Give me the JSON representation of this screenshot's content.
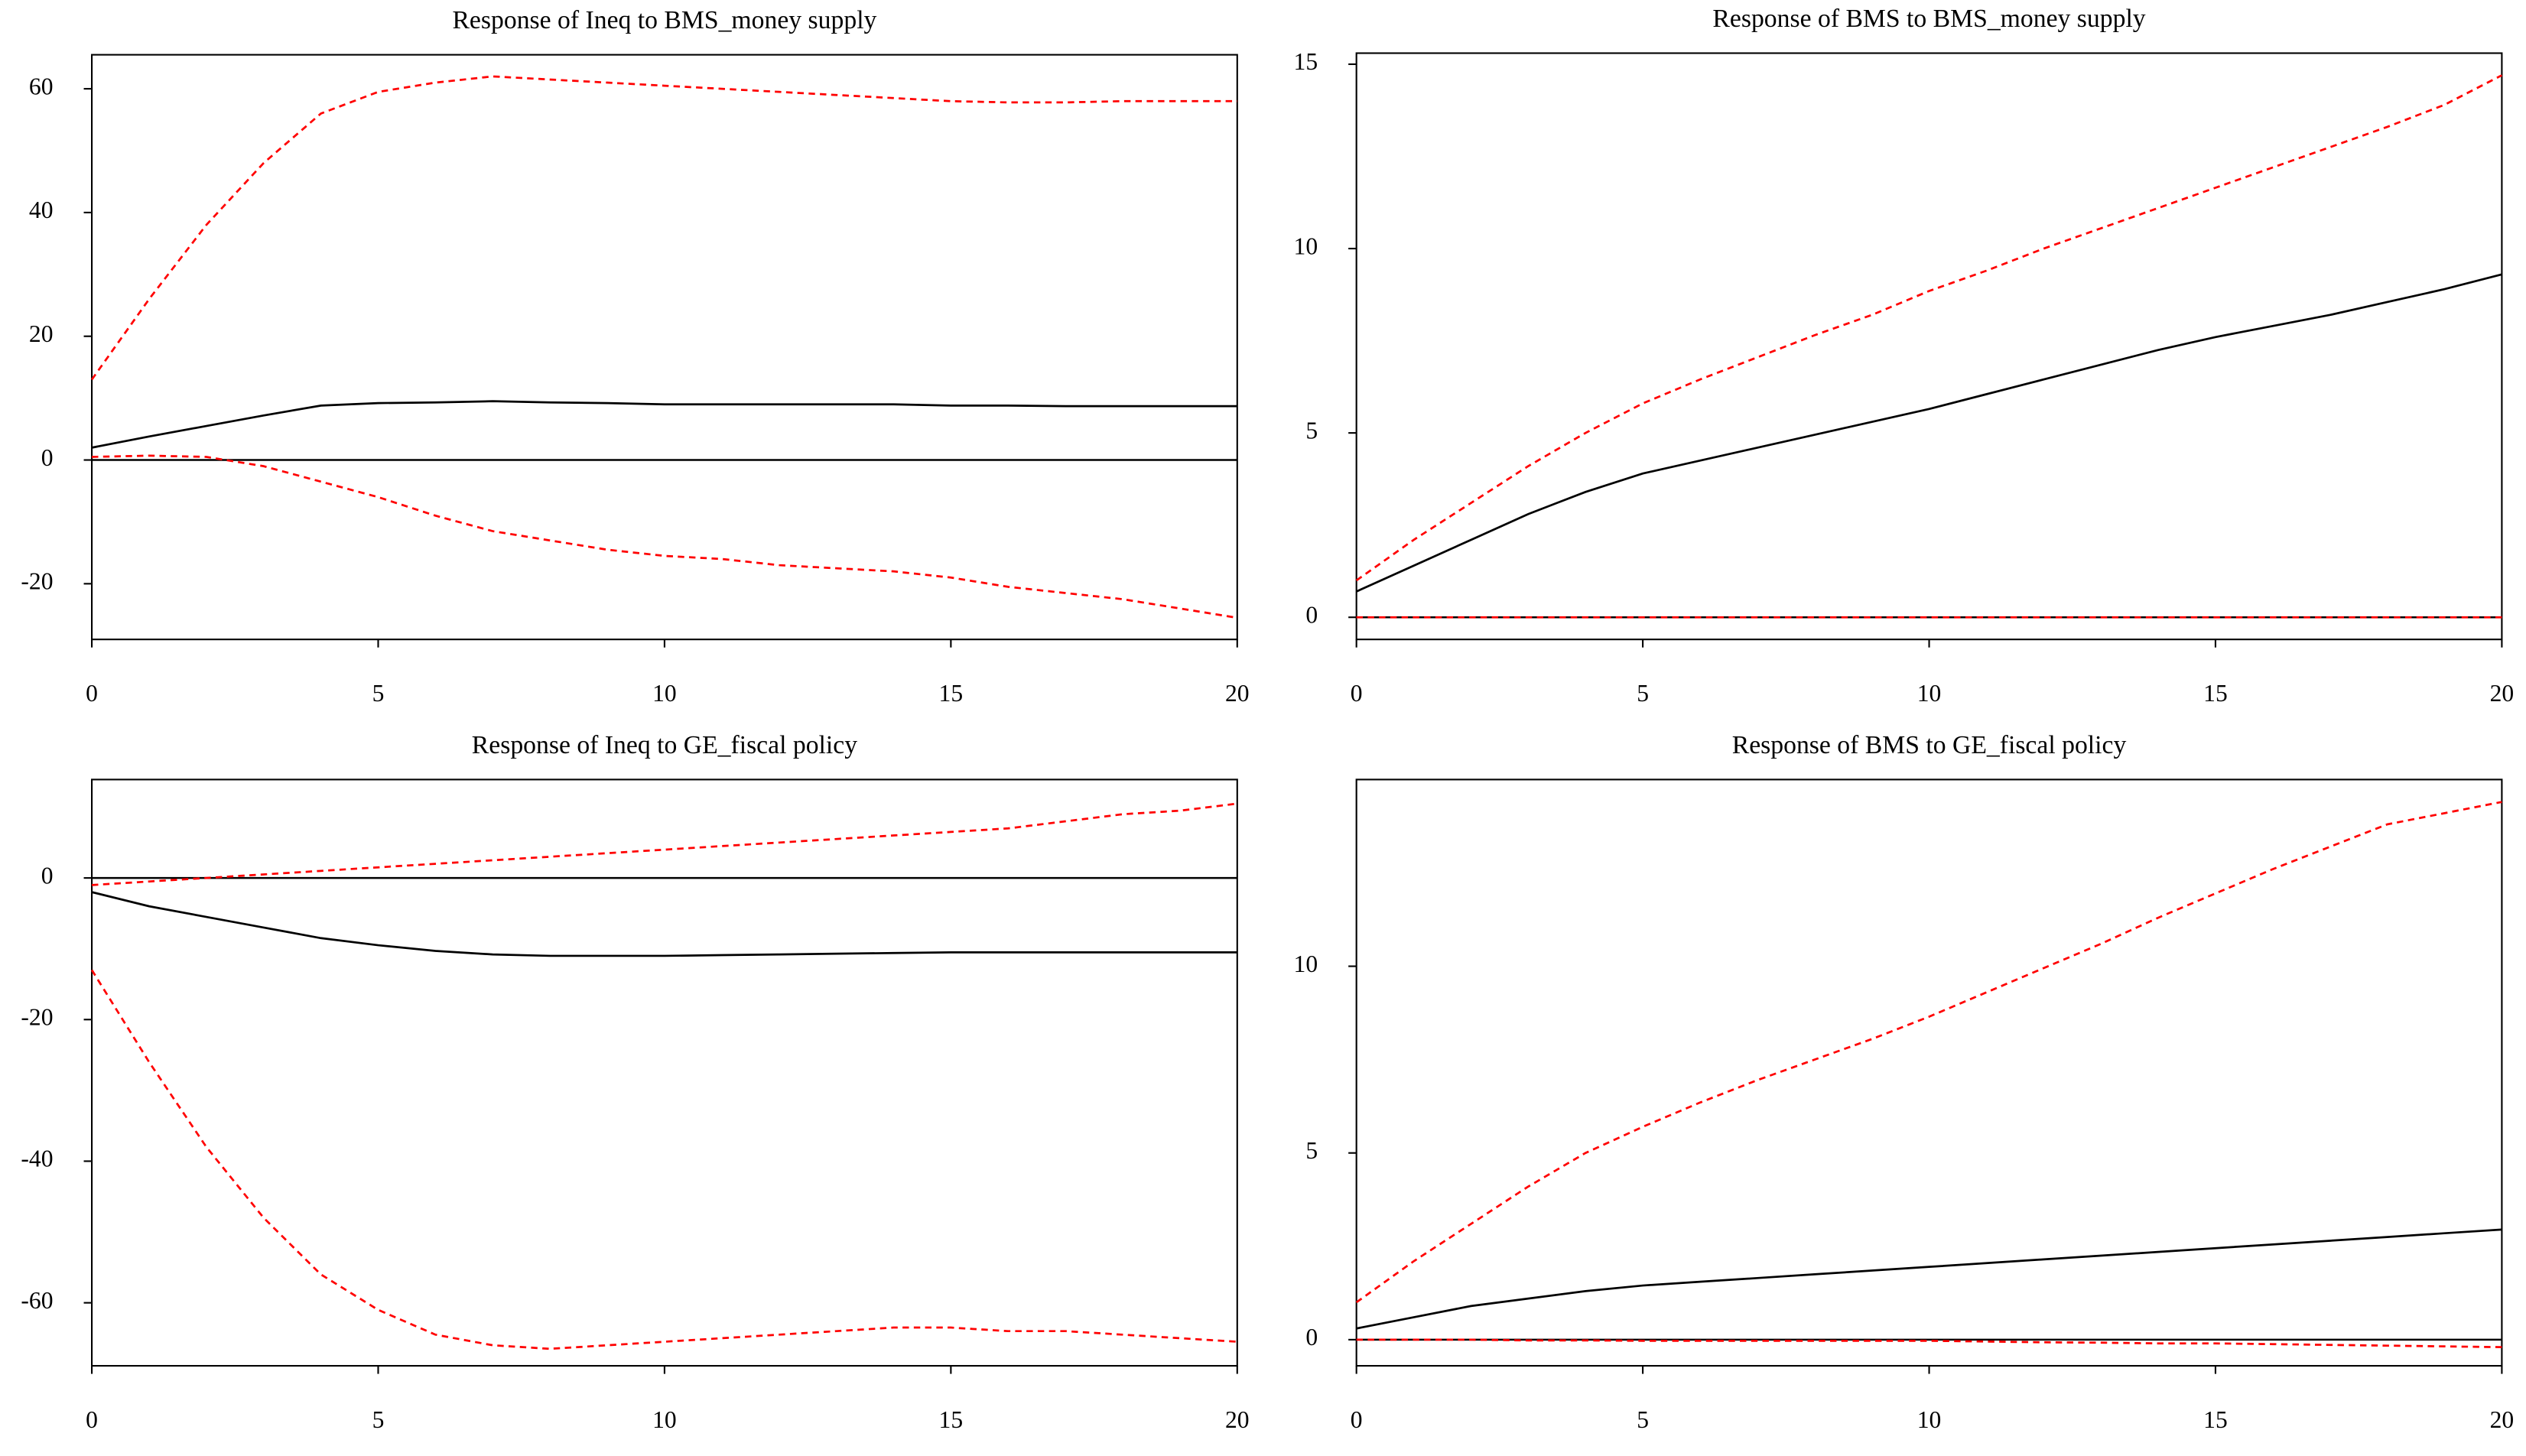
{
  "chart_data": [
    {
      "type": "line",
      "title": "Response of Ineq to BMS_money supply",
      "x": [
        0,
        1,
        2,
        3,
        4,
        5,
        6,
        7,
        8,
        9,
        10,
        11,
        12,
        13,
        14,
        15,
        16,
        17,
        18,
        19,
        20
      ],
      "xlim": [
        0,
        20
      ],
      "xticks": [
        0,
        5,
        10,
        15,
        20
      ],
      "ylim": [
        -29,
        65.5
      ],
      "yticks": [
        -20,
        0,
        20,
        40,
        60
      ],
      "reference_line": 0,
      "series": [
        {
          "color": "#000000",
          "dashed": false,
          "values": [
            2,
            3.8,
            5.5,
            7.2,
            8.8,
            9.2,
            9.3,
            9.5,
            9.3,
            9.2,
            9,
            9,
            9,
            9,
            9,
            8.8,
            8.8,
            8.7,
            8.7,
            8.7,
            8.7
          ]
        },
        {
          "color": "#ff0000",
          "dashed": true,
          "values": [
            13,
            26,
            38,
            48,
            56,
            59.5,
            61,
            62,
            61.5,
            61,
            60.5,
            60,
            59.5,
            59,
            58.5,
            58,
            57.8,
            57.8,
            58,
            58,
            58
          ]
        },
        {
          "color": "#ff0000",
          "dashed": true,
          "values": [
            0.5,
            0.7,
            0.5,
            -1,
            -3.5,
            -6,
            -9,
            -11.5,
            -13,
            -14.5,
            -15.5,
            -16,
            -17,
            -17.5,
            -18,
            -19,
            -20.5,
            -21.5,
            -22.5,
            -24,
            -25.5
          ]
        }
      ]
    },
    {
      "type": "line",
      "title": "Response of BMS to BMS_money supply",
      "x": [
        0,
        1,
        2,
        3,
        4,
        5,
        6,
        7,
        8,
        9,
        10,
        11,
        12,
        13,
        14,
        15,
        16,
        17,
        18,
        19,
        20
      ],
      "xlim": [
        0,
        20
      ],
      "xticks": [
        0,
        5,
        10,
        15,
        20
      ],
      "ylim": [
        -0.6,
        15.3
      ],
      "yticks": [
        0,
        5,
        10,
        15
      ],
      "reference_line": 0,
      "series": [
        {
          "color": "#000000",
          "dashed": false,
          "values": [
            0.7,
            1.4,
            2.1,
            2.8,
            3.4,
            3.9,
            4.25,
            4.6,
            4.95,
            5.3,
            5.65,
            6.05,
            6.45,
            6.85,
            7.25,
            7.6,
            7.9,
            8.2,
            8.55,
            8.9,
            9.3
          ]
        },
        {
          "color": "#ff0000",
          "dashed": true,
          "values": [
            1.0,
            2.1,
            3.1,
            4.1,
            5.0,
            5.8,
            6.45,
            7.05,
            7.65,
            8.2,
            8.85,
            9.4,
            10.0,
            10.55,
            11.1,
            11.65,
            12.2,
            12.75,
            13.3,
            13.9,
            14.7
          ]
        },
        {
          "color": "#ff0000",
          "dashed": true,
          "values": [
            0,
            0,
            0,
            0,
            0,
            0,
            0,
            0,
            0,
            0,
            0,
            0,
            0,
            0,
            0,
            0,
            0,
            0,
            0,
            0,
            0
          ]
        }
      ]
    },
    {
      "type": "line",
      "title": "Response of Ineq to GE_fiscal policy",
      "x": [
        0,
        1,
        2,
        3,
        4,
        5,
        6,
        7,
        8,
        9,
        10,
        11,
        12,
        13,
        14,
        15,
        16,
        17,
        18,
        19,
        20
      ],
      "xlim": [
        0,
        20
      ],
      "xticks": [
        0,
        5,
        10,
        15,
        20
      ],
      "ylim": [
        -68.9,
        13.9
      ],
      "yticks": [
        -60,
        -40,
        -20,
        0
      ],
      "reference_line": 0,
      "series": [
        {
          "color": "#000000",
          "dashed": false,
          "values": [
            -2,
            -4,
            -5.5,
            -7,
            -8.5,
            -9.5,
            -10.3,
            -10.8,
            -11,
            -11,
            -11,
            -10.9,
            -10.8,
            -10.7,
            -10.6,
            -10.5,
            -10.5,
            -10.5,
            -10.5,
            -10.5,
            -10.5
          ]
        },
        {
          "color": "#ff0000",
          "dashed": true,
          "values": [
            -1,
            -0.5,
            0,
            0.5,
            1,
            1.5,
            2,
            2.5,
            3,
            3.5,
            4,
            4.5,
            5,
            5.5,
            6,
            6.5,
            7,
            8,
            9,
            9.5,
            10.5
          ]
        },
        {
          "color": "#ff0000",
          "dashed": true,
          "values": [
            -13,
            -26,
            -38,
            -48,
            -56,
            -61,
            -64.5,
            -66,
            -66.5,
            -66,
            -65.5,
            -65,
            -64.5,
            -64,
            -63.5,
            -63.5,
            -64,
            -64,
            -64.5,
            -65,
            -65.5
          ]
        }
      ]
    },
    {
      "type": "line",
      "title": "Response of BMS to GE_fiscal policy",
      "x": [
        0,
        1,
        2,
        3,
        4,
        5,
        6,
        7,
        8,
        9,
        10,
        11,
        12,
        13,
        14,
        15,
        16,
        17,
        18,
        19,
        20
      ],
      "xlim": [
        0,
        20
      ],
      "xticks": [
        0,
        5,
        10,
        15,
        20
      ],
      "ylim": [
        -0.7,
        15
      ],
      "yticks": [
        0,
        5,
        10
      ],
      "reference_line": 0,
      "series": [
        {
          "color": "#000000",
          "dashed": false,
          "values": [
            0.3,
            0.6,
            0.9,
            1.1,
            1.3,
            1.45,
            1.55,
            1.65,
            1.75,
            1.85,
            1.95,
            2.05,
            2.15,
            2.25,
            2.35,
            2.45,
            2.55,
            2.65,
            2.75,
            2.85,
            2.95
          ]
        },
        {
          "color": "#ff0000",
          "dashed": true,
          "values": [
            1.0,
            2.1,
            3.1,
            4.1,
            5.0,
            5.7,
            6.35,
            6.95,
            7.5,
            8.05,
            8.65,
            9.3,
            9.95,
            10.6,
            11.3,
            11.95,
            12.6,
            13.2,
            13.8,
            14.1,
            14.4
          ]
        },
        {
          "color": "#ff0000",
          "dashed": true,
          "values": [
            0,
            0,
            0,
            -0.02,
            -0.02,
            -0.03,
            -0.03,
            -0.03,
            -0.03,
            -0.03,
            -0.03,
            -0.05,
            -0.07,
            -0.08,
            -0.1,
            -0.1,
            -0.12,
            -0.14,
            -0.16,
            -0.18,
            -0.2
          ]
        }
      ]
    }
  ]
}
